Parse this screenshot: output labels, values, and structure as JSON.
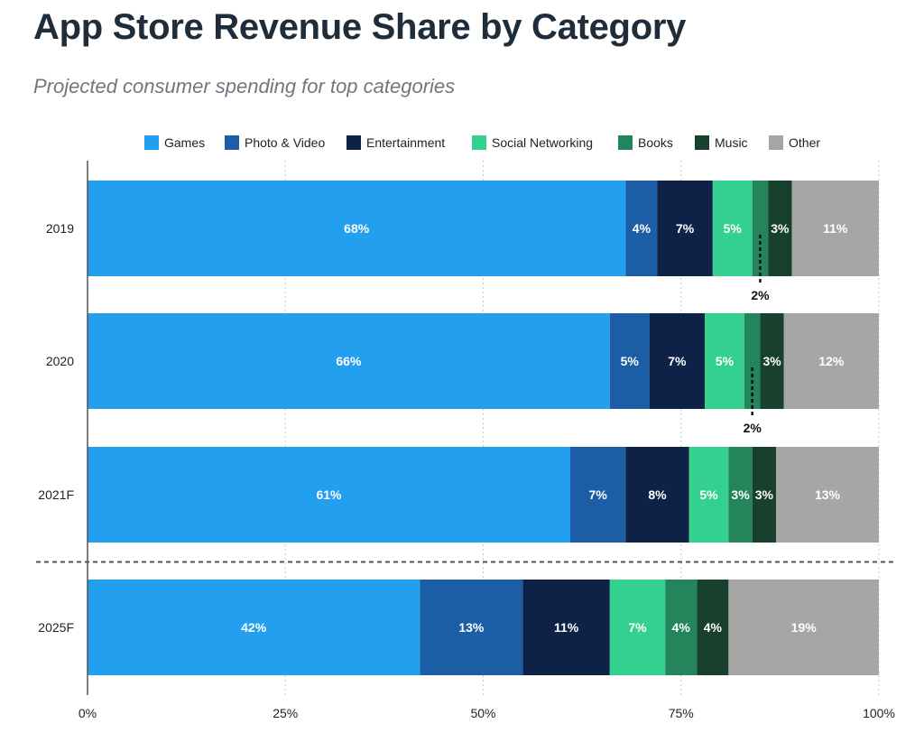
{
  "title": "App Store Revenue Share by Category",
  "subtitle": "Projected consumer spending for top categories",
  "chart_data": {
    "type": "bar",
    "orientation": "horizontal",
    "stacked": true,
    "categories": [
      "2019",
      "2020",
      "2021F",
      "2025F"
    ],
    "series": [
      {
        "name": "Games",
        "color": "#239ff0",
        "values": [
          68,
          66,
          61,
          42
        ]
      },
      {
        "name": "Photo & Video",
        "color": "#1b5ea6",
        "values": [
          4,
          5,
          7,
          13
        ]
      },
      {
        "name": "Entertainment",
        "color": "#0e2248",
        "values": [
          7,
          7,
          8,
          11
        ]
      },
      {
        "name": "Social Networking",
        "color": "#34d08f",
        "values": [
          5,
          5,
          5,
          7
        ]
      },
      {
        "name": "Books",
        "color": "#24855d",
        "values": [
          2,
          2,
          3,
          4
        ]
      },
      {
        "name": "Music",
        "color": "#17412d",
        "values": [
          3,
          3,
          3,
          4
        ]
      },
      {
        "name": "Other",
        "color": "#a6a6a6",
        "values": [
          11,
          12,
          13,
          19
        ]
      }
    ],
    "data_labels": [
      [
        "68%",
        "4%",
        "7%",
        "5%",
        "",
        "3%",
        "11%"
      ],
      [
        "66%",
        "5%",
        "7%",
        "5%",
        "",
        "3%",
        "12%"
      ],
      [
        "61%",
        "7%",
        "8%",
        "5%",
        "3%",
        "3%",
        "13%"
      ],
      [
        "42%",
        "13%",
        "11%",
        "7%",
        "4%",
        "4%",
        "19%"
      ]
    ],
    "callouts": [
      {
        "category": "2019",
        "series": "Books",
        "label": "2%"
      },
      {
        "category": "2020",
        "series": "Books",
        "label": "2%"
      }
    ],
    "x_ticks": [
      "0%",
      "25%",
      "50%",
      "75%",
      "100%"
    ],
    "xlim": [
      0,
      100
    ],
    "grid": true,
    "legend": "top",
    "separator_before": "2025F"
  }
}
